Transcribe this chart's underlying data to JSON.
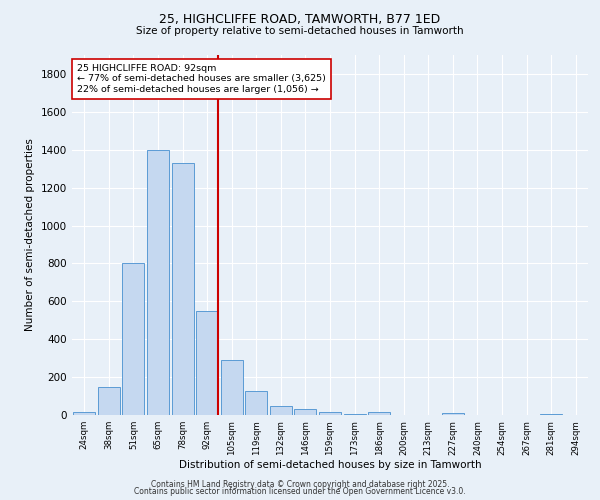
{
  "title1": "25, HIGHCLIFFE ROAD, TAMWORTH, B77 1ED",
  "title2": "Size of property relative to semi-detached houses in Tamworth",
  "xlabel": "Distribution of semi-detached houses by size in Tamworth",
  "ylabel": "Number of semi-detached properties",
  "categories": [
    "24sqm",
    "38sqm",
    "51sqm",
    "65sqm",
    "78sqm",
    "92sqm",
    "105sqm",
    "119sqm",
    "132sqm",
    "146sqm",
    "159sqm",
    "173sqm",
    "186sqm",
    "200sqm",
    "213sqm",
    "227sqm",
    "240sqm",
    "254sqm",
    "267sqm",
    "281sqm",
    "294sqm"
  ],
  "values": [
    15,
    150,
    800,
    1400,
    1330,
    550,
    290,
    125,
    50,
    30,
    15,
    5,
    15,
    0,
    0,
    10,
    0,
    0,
    0,
    5,
    0
  ],
  "bar_color": "#c5d8f0",
  "bar_edge_color": "#5b9bd5",
  "highlight_index": 5,
  "vline_color": "#cc0000",
  "annotation_text": "25 HIGHCLIFFE ROAD: 92sqm\n← 77% of semi-detached houses are smaller (3,625)\n22% of semi-detached houses are larger (1,056) →",
  "annotation_box_color": "#ffffff",
  "annotation_box_edge": "#cc0000",
  "ylim": [
    0,
    1900
  ],
  "yticks": [
    0,
    200,
    400,
    600,
    800,
    1000,
    1200,
    1400,
    1600,
    1800
  ],
  "background_color": "#e8f0f8",
  "grid_color": "#ffffff",
  "footer1": "Contains HM Land Registry data © Crown copyright and database right 2025.",
  "footer2": "Contains public sector information licensed under the Open Government Licence v3.0."
}
